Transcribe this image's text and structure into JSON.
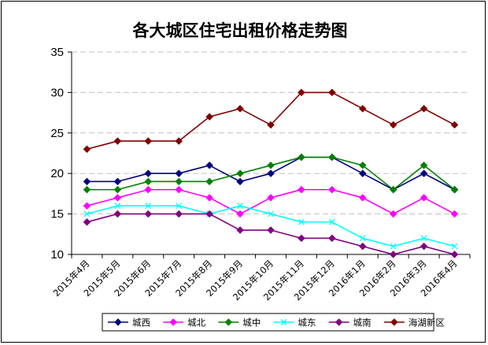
{
  "chart_data": {
    "type": "line",
    "title": "各大城区住宅出租价格走势图",
    "categories": [
      "2015年4月",
      "2015年5月",
      "2015年6月",
      "2015年7月",
      "2015年8月",
      "2015年9月",
      "2015年10月",
      "2015年11月",
      "2015年12月",
      "2016年1月",
      "2016年2月",
      "2016年3月",
      "2016年4月"
    ],
    "ylim": [
      10,
      35
    ],
    "yticks": [
      10,
      15,
      20,
      25,
      30,
      35
    ],
    "grid": true,
    "legend_position": "bottom",
    "series": [
      {
        "name": "城西",
        "color": "#00007F",
        "marker": "diamond",
        "values": [
          19,
          19,
          20,
          20,
          21,
          19,
          20,
          22,
          22,
          20,
          18,
          20,
          18
        ]
      },
      {
        "name": "城北",
        "color": "#FF00FF",
        "marker": "diamond",
        "values": [
          16,
          17,
          18,
          18,
          17,
          15,
          17,
          18,
          18,
          17,
          15,
          17,
          15
        ]
      },
      {
        "name": "城中",
        "color": "#008000",
        "marker": "diamond",
        "values": [
          18,
          18,
          19,
          19,
          19,
          20,
          21,
          22,
          22,
          21,
          18,
          21,
          18
        ]
      },
      {
        "name": "城东",
        "color": "#00FFFF",
        "marker": "x",
        "values": [
          15,
          16,
          16,
          16,
          15,
          16,
          15,
          14,
          14,
          12,
          11,
          12,
          11
        ]
      },
      {
        "name": "城南",
        "color": "#800080",
        "marker": "diamond",
        "values": [
          14,
          15,
          15,
          15,
          15,
          13,
          13,
          12,
          12,
          11,
          10,
          11,
          10
        ]
      },
      {
        "name": "海湖新区",
        "color": "#800000",
        "marker": "diamond",
        "values": [
          23,
          24,
          24,
          24,
          27,
          28,
          26,
          30,
          30,
          28,
          26,
          28,
          26
        ]
      }
    ]
  }
}
